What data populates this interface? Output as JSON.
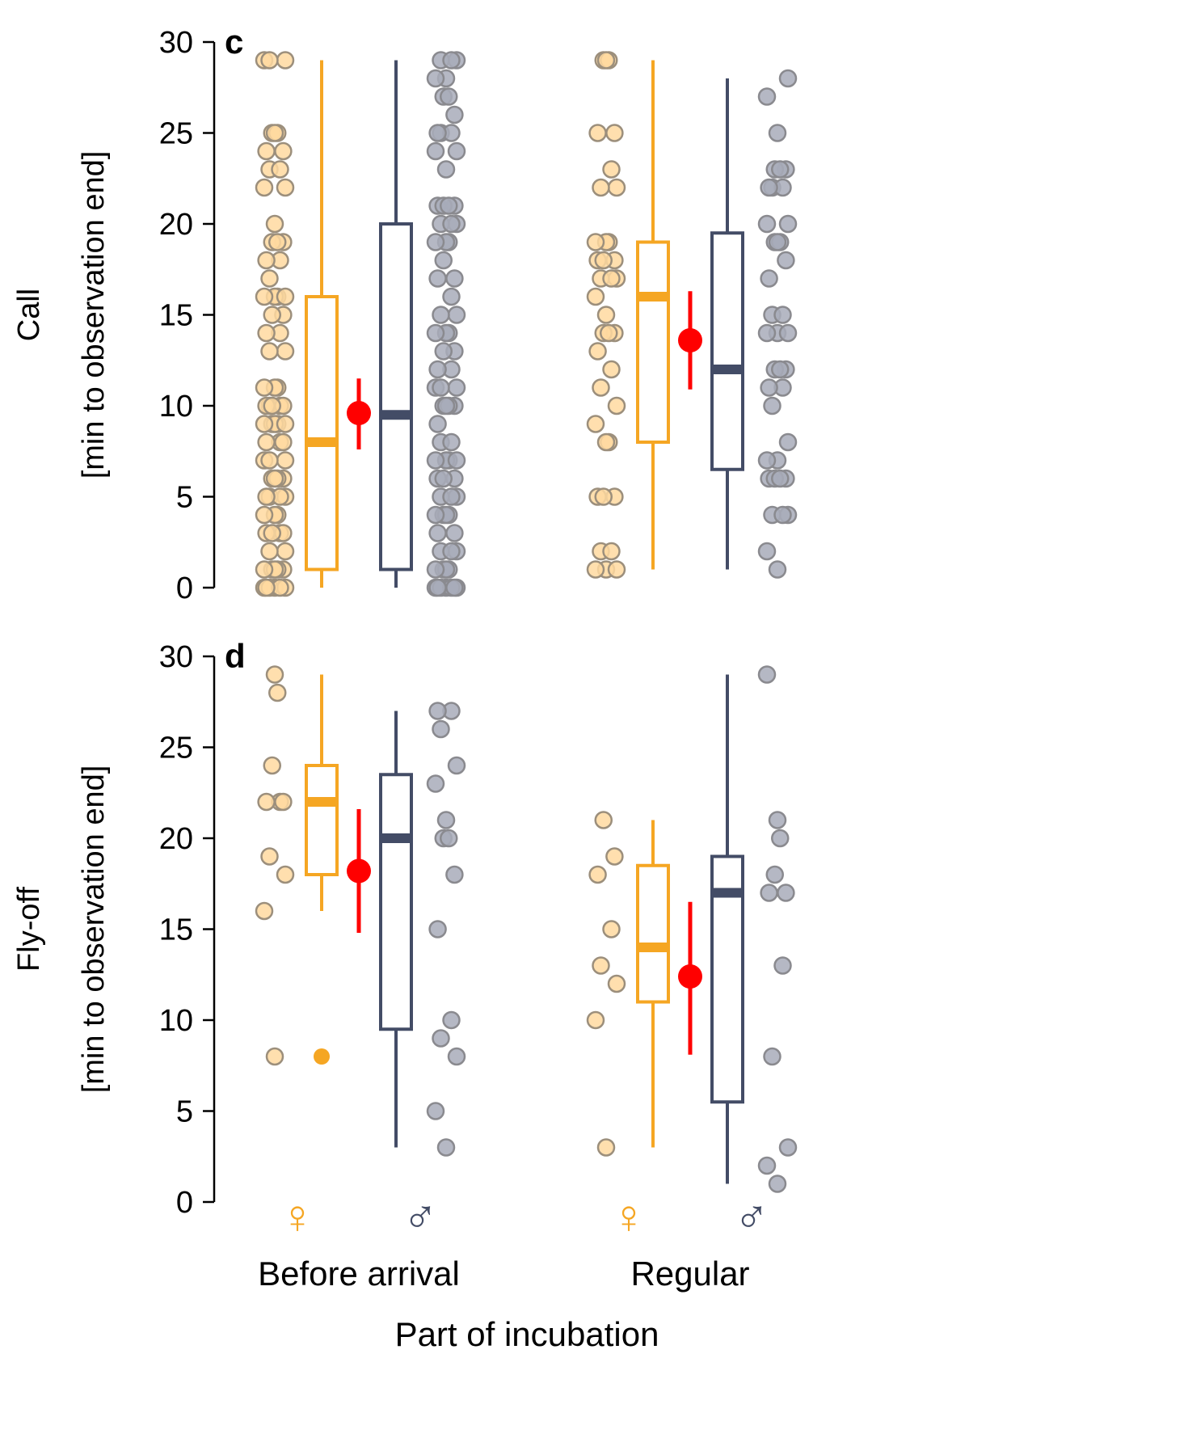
{
  "colors": {
    "female": "#f5a623",
    "female_point_fill": "#ffd9a0",
    "female_point_stroke": "#9c8f7c",
    "male": "#434c66",
    "male_point_fill": "#a8acba",
    "male_point_stroke": "#8a8a8f",
    "estimate": "#ff0000",
    "axis": "#000000"
  },
  "xaxis": {
    "title": "Part of incubation",
    "categories": [
      "Before arrival",
      "Regular"
    ],
    "sex_symbols": [
      "♀",
      "♂",
      "♀",
      "♂"
    ]
  },
  "chart_data": [
    {
      "type": "box",
      "panel_label": "c",
      "ylabel_line1": "Call",
      "ylabel_line2": "[min to observation end]",
      "ylim": [
        0,
        30
      ],
      "yticks": [
        "0",
        "5",
        "10",
        "15",
        "20",
        "25",
        "30"
      ],
      "groups": [
        {
          "category": "Before arrival",
          "female": {
            "box": {
              "min": 0,
              "q1": 1,
              "median": 8,
              "q3": 16,
              "max": 29
            },
            "points": [
              0,
              0,
              0,
              0,
              0,
              0,
              1,
              1,
              1,
              1,
              1,
              2,
              2,
              3,
              3,
              3,
              3,
              4,
              4,
              4,
              5,
              5,
              5,
              5,
              6,
              6,
              6,
              6,
              7,
              7,
              7,
              8,
              8,
              8,
              9,
              9,
              9,
              9,
              9,
              10,
              10,
              10,
              10,
              10,
              11,
              11,
              11,
              13,
              13,
              14,
              14,
              15,
              15,
              16,
              16,
              16,
              16,
              17,
              18,
              18,
              19,
              19,
              19,
              20,
              22,
              22,
              23,
              23,
              24,
              24,
              25,
              25,
              25,
              29,
              29,
              29
            ]
          },
          "male": {
            "box": {
              "min": 0,
              "q1": 1,
              "median": 9.5,
              "q3": 20,
              "max": 29
            },
            "points": [
              0,
              0,
              0,
              0,
              0,
              0,
              0,
              1,
              1,
              1,
              1,
              2,
              2,
              2,
              3,
              3,
              4,
              4,
              4,
              4,
              5,
              5,
              5,
              6,
              6,
              6,
              7,
              7,
              7,
              7,
              8,
              8,
              9,
              10,
              10,
              10,
              10,
              11,
              11,
              11,
              12,
              12,
              13,
              13,
              14,
              14,
              14,
              15,
              15,
              16,
              17,
              17,
              18,
              19,
              19,
              19,
              20,
              20,
              20,
              21,
              21,
              21,
              21,
              23,
              24,
              24,
              25,
              25,
              25,
              26,
              27,
              27,
              28,
              28,
              29,
              29,
              29
            ]
          },
          "estimate": {
            "mean": 9.6,
            "lower": 7.6,
            "upper": 11.5
          }
        },
        {
          "category": "Regular",
          "female": {
            "box": {
              "min": 1,
              "q1": 8,
              "median": 16,
              "q3": 19,
              "max": 29
            },
            "points": [
              1,
              1,
              1,
              2,
              2,
              5,
              5,
              5,
              8,
              8,
              9,
              10,
              11,
              12,
              13,
              14,
              14,
              14,
              15,
              16,
              17,
              17,
              17,
              18,
              18,
              18,
              19,
              19,
              19,
              22,
              22,
              23,
              25,
              25,
              29,
              29,
              29
            ]
          },
          "male": {
            "box": {
              "min": 1,
              "q1": 6.5,
              "median": 12,
              "q3": 19.5,
              "max": 28
            },
            "points": [
              1,
              2,
              4,
              4,
              4,
              6,
              6,
              6,
              6,
              7,
              7,
              8,
              10,
              11,
              11,
              12,
              12,
              12,
              14,
              14,
              14,
              15,
              15,
              17,
              18,
              19,
              19,
              19,
              20,
              20,
              22,
              22,
              22,
              23,
              23,
              23,
              25,
              27,
              28
            ]
          },
          "estimate": {
            "mean": 13.6,
            "lower": 10.9,
            "upper": 16.3
          }
        }
      ]
    },
    {
      "type": "box",
      "panel_label": "d",
      "ylabel_line1": "Fly-off",
      "ylabel_line2": "[min to observation end]",
      "ylim": [
        0,
        30
      ],
      "yticks": [
        "0",
        "5",
        "10",
        "15",
        "20",
        "25",
        "30"
      ],
      "groups": [
        {
          "category": "Before arrival",
          "female": {
            "box": {
              "min": 16,
              "q1": 18,
              "median": 22,
              "q3": 24,
              "max": 29
            },
            "outliers": [
              8
            ],
            "points": [
              8,
              16,
              18,
              19,
              22,
              22,
              22,
              24,
              28,
              29
            ]
          },
          "male": {
            "box": {
              "min": 3,
              "q1": 9.5,
              "median": 20,
              "q3": 23.5,
              "max": 27
            },
            "points": [
              3,
              5,
              8,
              9,
              10,
              15,
              18,
              20,
              20,
              21,
              23,
              24,
              26,
              27,
              27
            ]
          },
          "estimate": {
            "mean": 18.2,
            "lower": 14.8,
            "upper": 21.6
          }
        },
        {
          "category": "Regular",
          "female": {
            "box": {
              "min": 3,
              "q1": 11,
              "median": 14,
              "q3": 18.5,
              "max": 21
            },
            "points": [
              3,
              10,
              12,
              13,
              15,
              18,
              19,
              21
            ]
          },
          "male": {
            "box": {
              "min": 1,
              "q1": 5.5,
              "median": 17,
              "q3": 19,
              "max": 29
            },
            "points": [
              1,
              2,
              3,
              8,
              13,
              17,
              17,
              18,
              20,
              21,
              29
            ]
          },
          "estimate": {
            "mean": 12.4,
            "lower": 8.1,
            "upper": 16.5
          }
        }
      ]
    }
  ]
}
